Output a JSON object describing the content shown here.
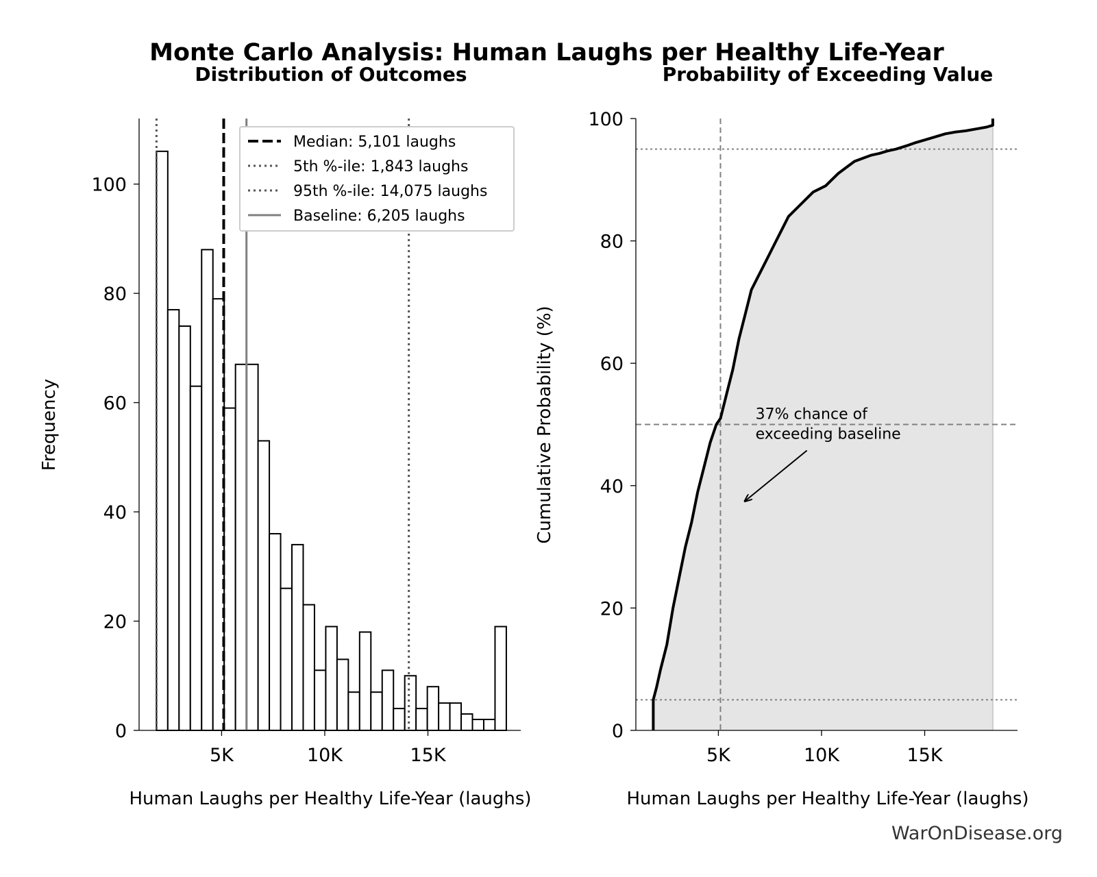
{
  "figure": {
    "title": "Monte Carlo Analysis: Human Laughs per Healthy Life-Year",
    "credit": "WarOnDisease.org"
  },
  "chart_data": [
    {
      "type": "bar",
      "subtitle": "Distribution of Outcomes",
      "xlabel": "Human Laughs per Healthy Life-Year (laughs)",
      "ylabel": "Frequency",
      "xlim": [
        1000,
        19500
      ],
      "ylim": [
        0,
        112
      ],
      "xticks": [
        5000,
        10000,
        15000
      ],
      "xtick_labels": [
        "5K",
        "10K",
        "15K"
      ],
      "yticks": [
        0,
        20,
        40,
        60,
        80,
        100
      ],
      "grid": false,
      "legend_position": "top-right",
      "bin_start": 1843,
      "bin_width": 547,
      "values": [
        106,
        77,
        74,
        63,
        88,
        79,
        59,
        67,
        67,
        53,
        36,
        26,
        34,
        23,
        11,
        19,
        13,
        7,
        18,
        7,
        11,
        4,
        10,
        4,
        8,
        5,
        5,
        3,
        2,
        2,
        19
      ],
      "bar_fill": "#ffffff",
      "bar_edge": "#000000",
      "reference_lines": [
        {
          "name": "median",
          "value": 5101,
          "label": "Median: 5,101 laughs",
          "style": "dashed",
          "color": "#000000"
        },
        {
          "name": "p5",
          "value": 1843,
          "label": "5th %-ile: 1,843 laughs",
          "style": "dotted",
          "color": "#555555"
        },
        {
          "name": "p95",
          "value": 14075,
          "label": "95th %-ile: 14,075 laughs",
          "style": "dotted",
          "color": "#555555"
        },
        {
          "name": "baseline",
          "value": 6205,
          "label": "Baseline: 6,205 laughs",
          "style": "solid",
          "color": "#808080"
        }
      ]
    },
    {
      "type": "area",
      "subtitle": "Probability of Exceeding Value",
      "xlabel": "Human Laughs per Healthy Life-Year (laughs)",
      "ylabel": "Cumulative Probability (%)",
      "xlim": [
        1000,
        19500
      ],
      "ylim": [
        0,
        100
      ],
      "xticks": [
        5000,
        10000,
        15000
      ],
      "xtick_labels": [
        "5K",
        "10K",
        "15K"
      ],
      "yticks": [
        0,
        20,
        40,
        60,
        80,
        100
      ],
      "grid": false,
      "fill_color": "#e5e5e5",
      "line_color": "#000000",
      "x": [
        1843,
        1843,
        2000,
        2200,
        2500,
        2800,
        3100,
        3400,
        3700,
        4000,
        4300,
        4600,
        4900,
        5101,
        5400,
        5700,
        6000,
        6300,
        6600,
        6900,
        7200,
        7500,
        7800,
        8100,
        8400,
        8700,
        9000,
        9300,
        9600,
        9900,
        10200,
        10500,
        10800,
        11200,
        11600,
        12000,
        12400,
        12800,
        13200,
        13600,
        14075,
        14500,
        15000,
        15500,
        16000,
        16500,
        17000,
        17500,
        18000,
        18300,
        18300
      ],
      "y": [
        0,
        5,
        7,
        10,
        14,
        20,
        25,
        30,
        34,
        39,
        43,
        47,
        50,
        51,
        55,
        59,
        64,
        68,
        72,
        74,
        76,
        78,
        80,
        82,
        84,
        85,
        86,
        87,
        88,
        88.5,
        89,
        90,
        91,
        92,
        93,
        93.5,
        94,
        94.3,
        94.7,
        95,
        95.5,
        96,
        96.5,
        97,
        97.5,
        97.8,
        98,
        98.3,
        98.6,
        98.9,
        100
      ],
      "reference_lines": [
        {
          "name": "median",
          "axis": "x",
          "value": 5101,
          "style": "dashed",
          "color": "#808080"
        },
        {
          "name": "half",
          "axis": "y",
          "value": 50,
          "style": "dashed",
          "color": "#808080"
        },
        {
          "name": "p95",
          "axis": "y",
          "value": 95,
          "style": "dotted",
          "color": "#808080"
        },
        {
          "name": "p5",
          "axis": "y",
          "value": 5,
          "style": "dotted",
          "color": "#808080"
        }
      ],
      "annotation": {
        "lines": [
          "37% chance of",
          "exceeding baseline"
        ],
        "text_at": [
          6800,
          50
        ],
        "arrow_to": [
          6300,
          37.5
        ]
      }
    }
  ]
}
